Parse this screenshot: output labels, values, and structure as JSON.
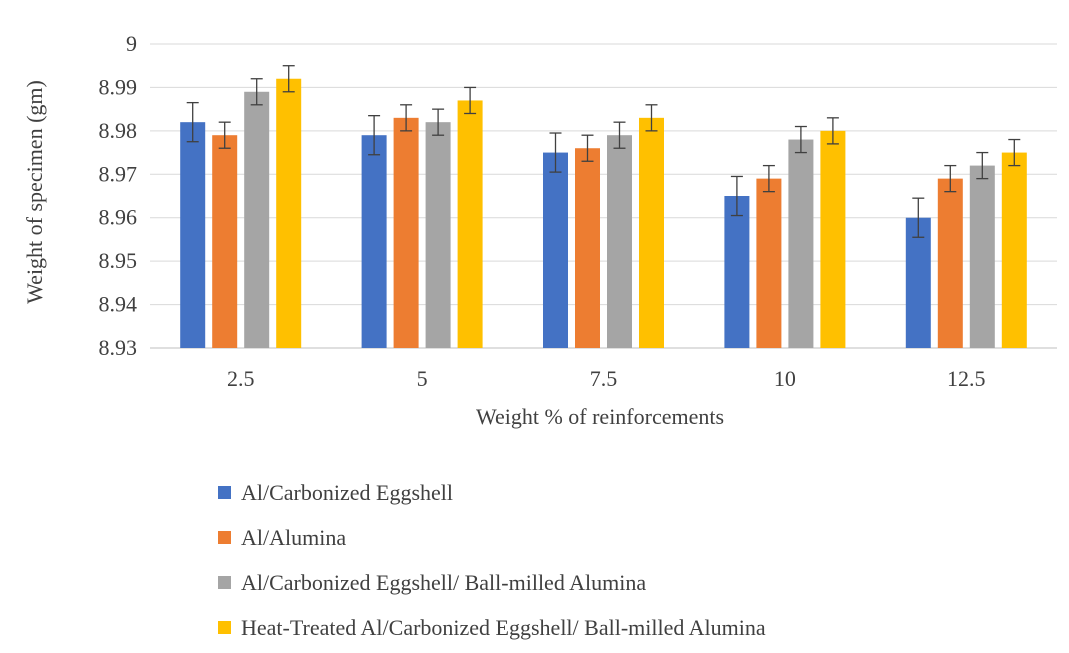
{
  "chart_data": {
    "type": "bar",
    "title": "",
    "xlabel": "Weight % of reinforcements",
    "ylabel": "Weight of specimen (gm)",
    "ylim": [
      8.93,
      9.0
    ],
    "yticks": [
      "8.93",
      "8.94",
      "8.95",
      "8.96",
      "8.97",
      "8.98",
      "8.99",
      "9"
    ],
    "categories": [
      "2.5",
      "5",
      "7.5",
      "10",
      "12.5"
    ],
    "grid": true,
    "legend_position": "bottom",
    "series": [
      {
        "name": "Al/Carbonized Eggshell",
        "color": "#4472c4",
        "values": [
          8.982,
          8.979,
          8.975,
          8.965,
          8.96
        ],
        "error": [
          0.0045,
          0.0045,
          0.0045,
          0.0045,
          0.0045
        ]
      },
      {
        "name": "Al/Alumina",
        "color": "#ed7d31",
        "values": [
          8.979,
          8.983,
          8.976,
          8.969,
          8.969
        ],
        "error": [
          0.003,
          0.003,
          0.003,
          0.003,
          0.003
        ]
      },
      {
        "name": "Al/Carbonized Eggshell/ Ball-milled Alumina",
        "color": "#a5a5a5",
        "values": [
          8.989,
          8.982,
          8.979,
          8.978,
          8.972
        ],
        "error": [
          0.003,
          0.003,
          0.003,
          0.003,
          0.003
        ]
      },
      {
        "name": "Heat-Treated Al/Carbonized Eggshell/ Ball-milled Alumina",
        "color": "#ffc000",
        "values": [
          8.992,
          8.987,
          8.983,
          8.98,
          8.975
        ],
        "error": [
          0.003,
          0.003,
          0.003,
          0.003,
          0.003
        ]
      }
    ]
  }
}
